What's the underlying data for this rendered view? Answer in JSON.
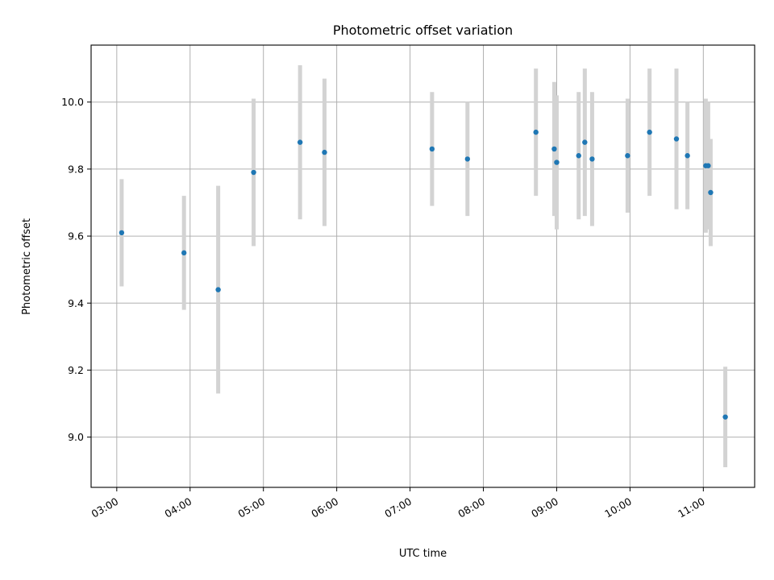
{
  "chart_data": {
    "type": "scatter",
    "title": "Photometric offset variation",
    "xlabel": "UTC time",
    "ylabel": "Photometric offset",
    "x_ticks": [
      "03:00",
      "04:00",
      "05:00",
      "06:00",
      "07:00",
      "08:00",
      "09:00",
      "10:00",
      "11:00"
    ],
    "y_ticks": [
      "9.0",
      "9.2",
      "9.4",
      "9.6",
      "9.8",
      "10.0"
    ],
    "xlim": [
      "02:39",
      "11:42"
    ],
    "ylim": [
      8.85,
      10.17
    ],
    "grid": true,
    "colors": {
      "point": "#1f77b4",
      "errorbar": "#d3d3d3",
      "grid": "#b0b0b0"
    },
    "points": [
      {
        "x": "03:04",
        "y": 9.61,
        "yerr": 0.16
      },
      {
        "x": "03:55",
        "y": 9.55,
        "yerr": 0.17
      },
      {
        "x": "04:23",
        "y": 9.44,
        "yerr": 0.31
      },
      {
        "x": "04:52",
        "y": 9.79,
        "yerr": 0.22
      },
      {
        "x": "05:30",
        "y": 9.88,
        "yerr": 0.23
      },
      {
        "x": "05:50",
        "y": 9.85,
        "yerr": 0.22
      },
      {
        "x": "07:18",
        "y": 9.86,
        "yerr": 0.17
      },
      {
        "x": "07:47",
        "y": 9.83,
        "yerr": 0.17
      },
      {
        "x": "08:43",
        "y": 9.91,
        "yerr": 0.19
      },
      {
        "x": "08:58",
        "y": 9.86,
        "yerr": 0.2
      },
      {
        "x": "09:00",
        "y": 9.82,
        "yerr": 0.2
      },
      {
        "x": "09:18",
        "y": 9.84,
        "yerr": 0.19
      },
      {
        "x": "09:23",
        "y": 9.88,
        "yerr": 0.22
      },
      {
        "x": "09:29",
        "y": 9.83,
        "yerr": 0.2
      },
      {
        "x": "09:58",
        "y": 9.84,
        "yerr": 0.17
      },
      {
        "x": "10:16",
        "y": 9.91,
        "yerr": 0.19
      },
      {
        "x": "10:38",
        "y": 9.89,
        "yerr": 0.21
      },
      {
        "x": "10:47",
        "y": 9.84,
        "yerr": 0.16
      },
      {
        "x": "11:02",
        "y": 9.81,
        "yerr": 0.2
      },
      {
        "x": "11:04",
        "y": 9.81,
        "yerr": 0.19
      },
      {
        "x": "11:06",
        "y": 9.73,
        "yerr": 0.16
      },
      {
        "x": "11:18",
        "y": 9.06,
        "yerr": 0.15
      }
    ]
  }
}
